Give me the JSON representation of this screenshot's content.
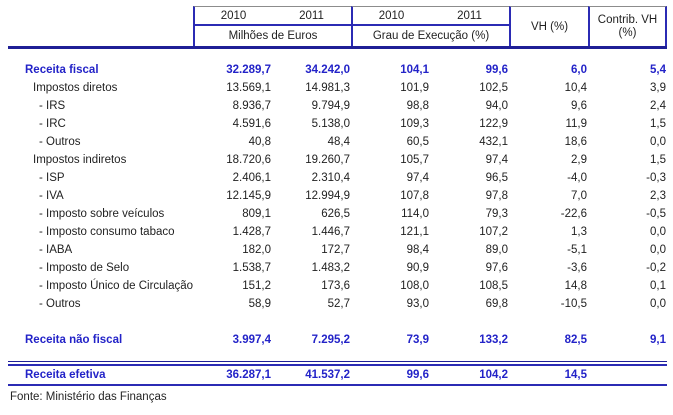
{
  "colors": {
    "accent_text_blue": "#2323C8",
    "border_blue": "#2B2BB4",
    "border_navy": "#1F1F96",
    "border_gray": "#8C8C8C",
    "text_black": "#1F1F1F"
  },
  "header": {
    "groups": [
      {
        "years": [
          "2010",
          "2011"
        ],
        "label": "Milhões de Euros"
      },
      {
        "years": [
          "2010",
          "2011"
        ],
        "label": "Grau de Execução (%)"
      }
    ],
    "vh_label": "VH (%)",
    "contrib_line1": "Contrib. VH",
    "contrib_line2": "(%)"
  },
  "table": {
    "rows": [
      {
        "label": "Receita fiscal",
        "indent": 1,
        "style": "total",
        "values": [
          "32.289,7",
          "34.242,0",
          "104,1",
          "99,6",
          "6,0",
          "5,4"
        ]
      },
      {
        "label": "Impostos diretos",
        "indent": 2,
        "style": "normal",
        "values": [
          "13.569,1",
          "14.981,3",
          "101,9",
          "102,5",
          "10,4",
          "3,9"
        ]
      },
      {
        "label": "- IRS",
        "indent": 3,
        "style": "normal",
        "values": [
          "8.936,7",
          "9.794,9",
          "98,8",
          "94,0",
          "9,6",
          "2,4"
        ]
      },
      {
        "label": "- IRC",
        "indent": 3,
        "style": "normal",
        "values": [
          "4.591,6",
          "5.138,0",
          "109,3",
          "122,9",
          "11,9",
          "1,5"
        ]
      },
      {
        "label": "- Outros",
        "indent": 3,
        "style": "normal",
        "values": [
          "40,8",
          "48,4",
          "60,5",
          "432,1",
          "18,6",
          "0,0"
        ]
      },
      {
        "label": "Impostos indiretos",
        "indent": 2,
        "style": "normal",
        "values": [
          "18.720,6",
          "19.260,7",
          "105,7",
          "97,4",
          "2,9",
          "1,5"
        ]
      },
      {
        "label": "- ISP",
        "indent": 3,
        "style": "normal",
        "values": [
          "2.406,1",
          "2.310,4",
          "97,4",
          "96,5",
          "-4,0",
          "-0,3"
        ]
      },
      {
        "label": "- IVA",
        "indent": 3,
        "style": "normal",
        "values": [
          "12.145,9",
          "12.994,9",
          "107,8",
          "97,8",
          "7,0",
          "2,3"
        ]
      },
      {
        "label": "- Imposto sobre veículos",
        "indent": 3,
        "style": "normal",
        "values": [
          "809,1",
          "626,5",
          "114,0",
          "79,3",
          "-22,6",
          "-0,5"
        ]
      },
      {
        "label": "- Imposto consumo tabaco",
        "indent": 3,
        "style": "normal",
        "values": [
          "1.428,7",
          "1.446,7",
          "121,1",
          "107,2",
          "1,3",
          "0,0"
        ]
      },
      {
        "label": "- IABA",
        "indent": 3,
        "style": "normal",
        "values": [
          "182,0",
          "172,7",
          "98,4",
          "89,0",
          "-5,1",
          "0,0"
        ]
      },
      {
        "label": "- Imposto de Selo",
        "indent": 3,
        "style": "normal",
        "values": [
          "1.538,7",
          "1.483,2",
          "90,9",
          "97,6",
          "-3,6",
          "-0,2"
        ]
      },
      {
        "label": "- Imposto Único de Circulação",
        "indent": 3,
        "style": "normal",
        "values": [
          "151,2",
          "173,6",
          "108,0",
          "108,5",
          "14,8",
          "0,1"
        ]
      },
      {
        "label": "- Outros",
        "indent": 3,
        "style": "normal",
        "values": [
          "58,9",
          "52,7",
          "93,0",
          "69,8",
          "-10,5",
          "0,0"
        ]
      },
      {
        "label": "Receita não fiscal",
        "indent": 1,
        "style": "total",
        "separator_before": "gap",
        "values": [
          "3.997,4",
          "7.295,2",
          "73,9",
          "133,2",
          "82,5",
          "9,1"
        ]
      },
      {
        "label": "Receita efetiva",
        "indent": 1,
        "style": "total",
        "separator_before": "double-rule",
        "rule_after": true,
        "values": [
          "36.287,1",
          "41.537,2",
          "99,6",
          "104,2",
          "14,5",
          ""
        ]
      }
    ]
  },
  "footer": {
    "source": "Fonte: Ministério das Finanças"
  }
}
